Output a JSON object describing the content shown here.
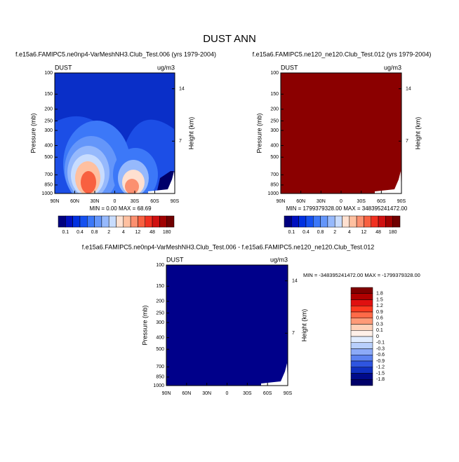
{
  "title": "DUST ANN",
  "panels": [
    {
      "title": "f.e15a6.FAMIPC5.ne0np4-VarMeshNH3.Club_Test.006 (yrs 1979-2004)",
      "left_label": "DUST",
      "right_label": "ug/m3",
      "y_axis_label": "Pressure (mb)",
      "y2_axis_label": "Height (km)",
      "yticks": [
        100,
        150,
        200,
        250,
        300,
        400,
        500,
        700,
        850,
        1000
      ],
      "y2ticks": [
        14,
        7
      ],
      "xticks": [
        "90N",
        "60N",
        "30N",
        "0",
        "30S",
        "60S",
        "90S"
      ],
      "stats": "MIN =   0.00  MAX =  68.69",
      "colorbar": [
        "0.1",
        "0.4",
        "0.8",
        "2",
        "4",
        "12",
        "48",
        "180"
      ]
    },
    {
      "title": "f.e15a6.FAMIPC5.ne120_ne120.Club_Test.012 (yrs 1979-2004)",
      "left_label": "DUST",
      "right_label": "ug/m3",
      "y_axis_label": "Pressure (mb)",
      "y2_axis_label": "Height (km)",
      "yticks": [
        100,
        150,
        200,
        250,
        300,
        400,
        500,
        700,
        850,
        1000
      ],
      "y2ticks": [
        14,
        7
      ],
      "xticks": [
        "90N",
        "60N",
        "30N",
        "0",
        "30S",
        "60S",
        "90S"
      ],
      "stats": "MIN = 1799379328.00   MAX = 348395241472.00",
      "colorbar": [
        "0.1",
        "0.4",
        "0.8",
        "2",
        "4",
        "12",
        "48",
        "180"
      ]
    },
    {
      "title": "f.e15a6.FAMIPC5.ne0np4-VarMeshNH3.Club_Test.006 - f.e15a6.FAMIPC5.ne120_ne120.Club_Test.012",
      "left_label": "DUST",
      "right_label": "ug/m3",
      "y_axis_label": "Pressure (mb)",
      "y2_axis_label": "Height (km)",
      "yticks": [
        100,
        150,
        200,
        250,
        300,
        400,
        500,
        700,
        850,
        1000
      ],
      "y2ticks": [
        14,
        7
      ],
      "xticks": [
        "90N",
        "60N",
        "30N",
        "0",
        "30S",
        "60S",
        "90S"
      ],
      "stats": "MIN = -348395241472.00  MAX = -1799379328.00",
      "colorbar": [
        "1.8",
        "1.5",
        "1.2",
        "0.9",
        "0.6",
        "0.3",
        "0.1",
        "0",
        "-0.1",
        "-0.3",
        "-0.6",
        "-0.9",
        "-1.2",
        "-1.5",
        "-1.8"
      ]
    }
  ]
}
